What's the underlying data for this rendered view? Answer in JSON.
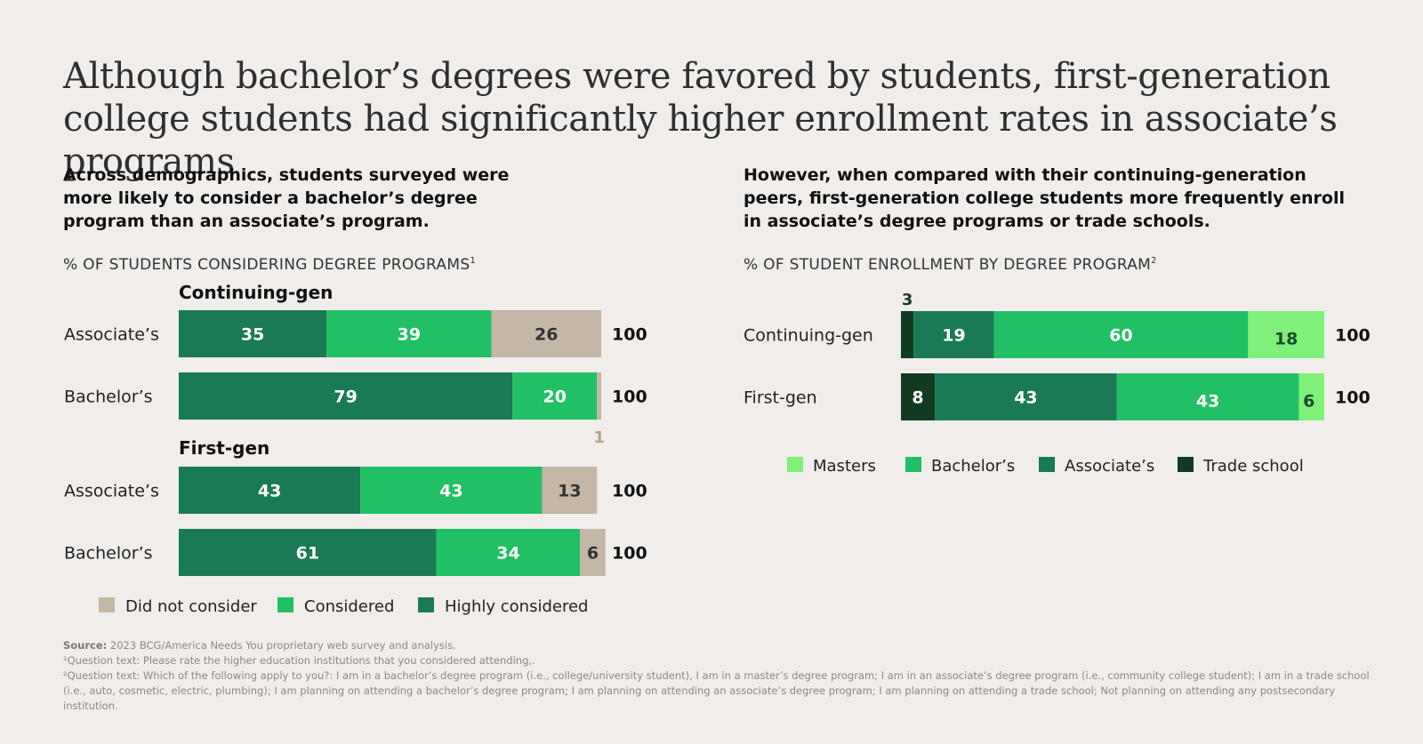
{
  "title": "Although bachelor’s degrees were favored by students, first-generation college students had significantly higher enrollment rates in associate’s programs",
  "left": {
    "subtitle": "Across demographics, students surveyed were more likely to consider a bachelor’s degree program than an associate’s program.",
    "axis_title": "% OF STUDENTS CONSIDERING DEGREE PROGRAMS",
    "axis_title_sup": "1"
  },
  "right": {
    "subtitle": "However, when compared with their continuing-generation peers, first-generation college students more frequently enroll in associate’s degree programs or trade schools.",
    "axis_title": "% OF STUDENT ENROLLMENT BY DEGREE PROGRAM",
    "axis_title_sup": "2"
  },
  "chart_data": [
    {
      "type": "bar",
      "orientation": "horizontal",
      "stacked": true,
      "title": "% OF STUDENTS CONSIDERING DEGREE PROGRAMS",
      "groups": [
        {
          "name": "Continuing-gen",
          "categories": [
            "Associate’s",
            "Bachelor’s"
          ]
        },
        {
          "name": "First-gen",
          "categories": [
            "Associate’s",
            "Bachelor’s"
          ]
        }
      ],
      "series": [
        {
          "name": "Highly considered",
          "color": "#1a7a55",
          "values": [
            35,
            79,
            43,
            61
          ]
        },
        {
          "name": "Considered",
          "color": "#22c064",
          "values": [
            39,
            20,
            43,
            34
          ]
        },
        {
          "name": "Did not consider",
          "color": "#c4b7a6",
          "values": [
            26,
            1,
            13,
            6
          ]
        }
      ],
      "totals": [
        "100",
        "100",
        "100",
        "100"
      ],
      "legend_order": [
        "Did not consider",
        "Considered",
        "Highly considered"
      ],
      "legend_position": "bottom",
      "xlim": [
        0,
        100
      ]
    },
    {
      "type": "bar",
      "orientation": "horizontal",
      "stacked": true,
      "title": "% OF STUDENT ENROLLMENT BY DEGREE PROGRAM",
      "categories": [
        "Continuing-gen",
        "First-gen"
      ],
      "series": [
        {
          "name": "Trade school",
          "color": "#123c21",
          "values": [
            3,
            8
          ]
        },
        {
          "name": "Associate’s",
          "color": "#1a7a55",
          "values": [
            19,
            43
          ]
        },
        {
          "name": "Bachelor’s",
          "color": "#22c064",
          "values": [
            60,
            43
          ]
        },
        {
          "name": "Masters",
          "color": "#7ff07a",
          "values": [
            18,
            6
          ]
        }
      ],
      "totals": [
        "100",
        "100"
      ],
      "legend_order": [
        "Masters",
        "Bachelor’s",
        "Associate’s",
        "Trade school"
      ],
      "legend_position": "bottom",
      "xlim": [
        0,
        100
      ]
    }
  ],
  "footer": {
    "source_label": "Source:",
    "source_text": "2023 BCG/America Needs You proprietary web survey and analysis.",
    "note1": "¹Question text: Please rate the higher education institutions that you considered attending,.",
    "note2": "²Question text: Which of the following apply to you?: I am in a bachelor’s degree program (i.e., college/university student), I am in a master’s degree program; I am in an associate’s degree program (i.e., community college student); I am in a trade school (i.e., auto, cosmetic, electric, plumbing); I am planning on attending a bachelor’s degree program; I am planning on attending an associate’s degree program; I am planning on attending a trade school; Not planning on attending any postsecondary institution."
  }
}
